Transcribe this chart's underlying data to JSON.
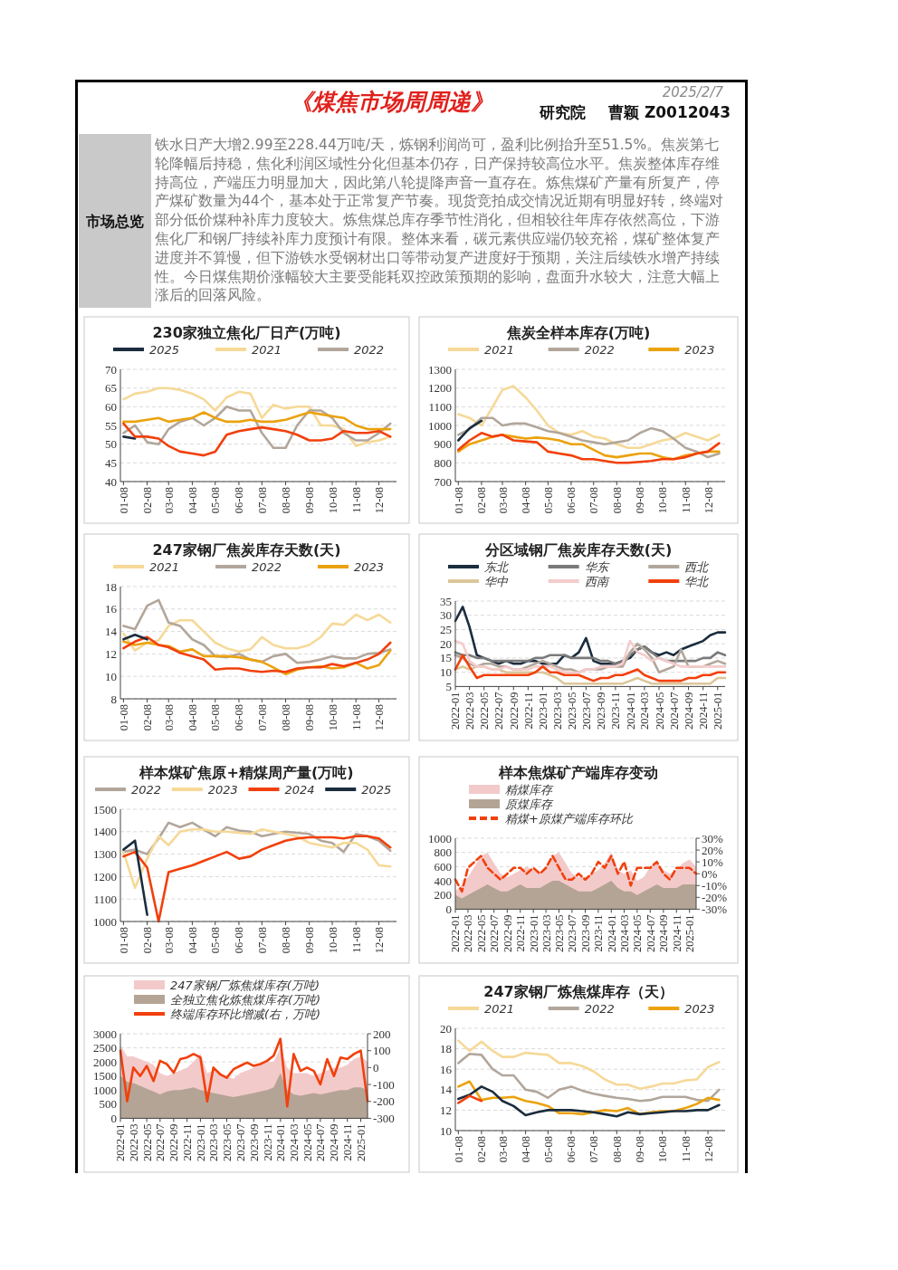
{
  "chart_data": [
    {
      "type": "other",
      "title": "《煤焦市场周周递》",
      "annotations": [
        "2025/2/7",
        "研究院",
        "曹颖  Z0012043",
        "市场总览",
        "铁水日产大增2.99至228.44万吨/天，炼钢利润尚可，盈利比例抬升至51.5%。焦炭第七轮降幅后持稳，焦化利润区域性分化但基本仍存，日产保持较高位水平。焦炭整体库存维持高位，产端压力明显加大，因此第八轮提降声音一直存在。炼焦煤矿产量有所复产，停产煤矿数量为44个，基本处于正常复产节奏。现货竞拍成交情况近期有明显好转，终端对部分低价煤种补库力度较大。炼焦煤总库存季节性消化，但相较往年库存依然高位，下游焦化厂和钢厂持续补库力度预计有限。整体来看，碳元素供应端仍较充裕，煤矿整体复产进度并不算慢，但下游铁水受钢材出口等带动复产进度好于预期，关注后续铁水增产持续性。今日煤焦期价涨幅较大主要受能耗双控政策预期的影响，盘面升水较大，注意大幅上涨后的回落风险。"
      ]
    },
    {
      "type": "line",
      "title": "230家独立焦化厂日产(万吨)",
      "grid": "y",
      "legend": "top",
      "x": [
        "--01-08",
        "--01-23",
        "--02-08",
        "--02-23",
        "--03-08",
        "--03-23",
        "--04-08",
        "--04-23",
        "--05-08",
        "--05-23",
        "--06-08",
        "--06-23",
        "--07-08",
        "--07-23",
        "--08-08",
        "--08-23",
        "--09-08",
        "--09-23",
        "--10-08",
        "--10-23",
        "--11-08",
        "--11-23",
        "--12-08",
        "--12-23"
      ],
      "xlim": [
        "--01-04",
        "--12-31"
      ],
      "xticks": [
        {
          "value": "--01-08",
          "label": "01-08"
        },
        {
          "value": "--02-08",
          "label": "02-08"
        },
        {
          "value": "--03-08",
          "label": "03-08"
        },
        {
          "value": "--04-08",
          "label": "04-08"
        },
        {
          "value": "--05-08",
          "label": "05-08"
        },
        {
          "value": "--06-08",
          "label": "06-08"
        },
        {
          "value": "--07-08",
          "label": "07-08"
        },
        {
          "value": "--08-08",
          "label": "08-08"
        },
        {
          "value": "--09-08",
          "label": "09-08"
        },
        {
          "value": "--10-08",
          "label": "10-08"
        },
        {
          "value": "--11-08",
          "label": "11-08"
        },
        {
          "value": "--12-08",
          "label": "12-08"
        }
      ],
      "ylim": [
        40,
        70
      ],
      "yticks": [
        40,
        45,
        50,
        55,
        60,
        65,
        70
      ],
      "series": [
        {
          "name": "2025",
          "color": "#1b2d3e",
          "x": [
            "--01-08",
            "--01-23"
          ],
          "values": [
            52,
            51.5
          ]
        },
        {
          "name": "2021",
          "color": "#f6d998",
          "values": [
            62,
            63.5,
            64,
            65,
            65,
            64.5,
            63.5,
            62,
            59,
            62.5,
            64,
            63.5,
            57,
            60.5,
            59.5,
            60,
            60,
            55,
            55,
            54,
            49.5,
            50.5,
            51,
            52
          ]
        },
        {
          "name": "2022",
          "color": "#b2a69b",
          "values": [
            53,
            55,
            50.5,
            50,
            54,
            56,
            57,
            55,
            57,
            60,
            59,
            59,
            53,
            49,
            49,
            55,
            59,
            59,
            57,
            53,
            51,
            51,
            53,
            55.5
          ]
        },
        {
          "color": "#eba20e",
          "values": [
            56,
            56,
            56.5,
            57,
            56,
            56.5,
            57,
            58.5,
            57,
            56,
            56,
            56.5,
            56,
            56,
            56.5,
            57.5,
            58.5,
            58,
            57.5,
            57,
            55,
            54,
            54,
            54
          ]
        },
        {
          "color": "#f2400c",
          "values": [
            55.5,
            52,
            52,
            51.5,
            49.5,
            48,
            47.5,
            47,
            48,
            52.5,
            53.5,
            54,
            54.5,
            54,
            53.5,
            52.5,
            51,
            51,
            51.5,
            53.5,
            53,
            53,
            53.5,
            52
          ]
        }
      ]
    },
    {
      "type": "line",
      "title": "焦炭全样本库存(万吨)",
      "grid": "y",
      "legend": "top",
      "x": [
        "--01-08",
        "--01-23",
        "--02-08",
        "--02-23",
        "--03-08",
        "--03-23",
        "--04-08",
        "--04-23",
        "--05-08",
        "--05-23",
        "--06-08",
        "--06-23",
        "--07-08",
        "--07-23",
        "--08-08",
        "--08-23",
        "--09-08",
        "--09-23",
        "--10-08",
        "--10-23",
        "--11-08",
        "--11-23",
        "--12-08",
        "--12-23"
      ],
      "xlim": [
        "--01-04",
        "--12-31"
      ],
      "xticks": [
        {
          "value": "--01-08",
          "label": "01-08"
        },
        {
          "value": "--02-08",
          "label": "02-08"
        },
        {
          "value": "--03-08",
          "label": "03-08"
        },
        {
          "value": "--04-08",
          "label": "04-08"
        },
        {
          "value": "--05-08",
          "label": "05-08"
        },
        {
          "value": "--06-08",
          "label": "06-08"
        },
        {
          "value": "--07-08",
          "label": "07-08"
        },
        {
          "value": "--08-08",
          "label": "08-08"
        },
        {
          "value": "--09-08",
          "label": "09-08"
        },
        {
          "value": "--10-08",
          "label": "10-08"
        },
        {
          "value": "--11-08",
          "label": "11-08"
        },
        {
          "value": "--12-08",
          "label": "12-08"
        }
      ],
      "ylim": [
        700,
        1300
      ],
      "yticks": [
        700,
        800,
        900,
        1000,
        1100,
        1200,
        1300
      ],
      "series": [
        {
          "name": "2021",
          "color": "#f6d998",
          "values": [
            1060,
            1040,
            1000,
            1100,
            1190,
            1210,
            1150,
            1080,
            1000,
            960,
            950,
            970,
            940,
            930,
            900,
            880,
            880,
            900,
            920,
            930,
            960,
            940,
            920,
            950
          ]
        },
        {
          "name": "2022",
          "color": "#b2a69b",
          "values": [
            950,
            980,
            1040,
            1040,
            1000,
            1010,
            1010,
            990,
            970,
            960,
            940,
            920,
            910,
            900,
            910,
            920,
            960,
            985,
            970,
            930,
            880,
            860,
            830,
            850
          ]
        },
        {
          "name": "2023",
          "color": "#eba20e",
          "values": [
            860,
            900,
            920,
            940,
            950,
            940,
            930,
            935,
            930,
            920,
            900,
            900,
            870,
            840,
            830,
            840,
            850,
            850,
            830,
            820,
            840,
            850,
            860,
            860
          ]
        },
        {
          "color": "#f2400c",
          "values": [
            870,
            920,
            960,
            940,
            950,
            920,
            915,
            910,
            860,
            850,
            840,
            820,
            820,
            810,
            800,
            800,
            805,
            810,
            820,
            820,
            830,
            850,
            860,
            905
          ]
        },
        {
          "color": "#1b2d3e",
          "x": [
            "--01-08",
            "--01-23",
            "--02-08"
          ],
          "values": [
            920,
            985,
            1025
          ]
        }
      ]
    },
    {
      "type": "line",
      "title": "247家钢厂焦炭库存天数(天)",
      "grid": "y",
      "legend": "top",
      "x": [
        "--01-08",
        "--01-23",
        "--02-08",
        "--02-23",
        "--03-08",
        "--03-23",
        "--04-08",
        "--04-23",
        "--05-08",
        "--05-23",
        "--06-08",
        "--06-23",
        "--07-08",
        "--07-23",
        "--08-08",
        "--08-23",
        "--09-08",
        "--09-23",
        "--10-08",
        "--10-23",
        "--11-08",
        "--11-23",
        "--12-08",
        "--12-23"
      ],
      "xlim": [
        "--01-04",
        "--12-31"
      ],
      "xticks": [
        {
          "value": "--01-08",
          "label": "01-08"
        },
        {
          "value": "--02-08",
          "label": "02-08"
        },
        {
          "value": "--03-08",
          "label": "03-08"
        },
        {
          "value": "--04-08",
          "label": "04-08"
        },
        {
          "value": "--05-08",
          "label": "05-08"
        },
        {
          "value": "--06-08",
          "label": "06-08"
        },
        {
          "value": "--07-08",
          "label": "07-08"
        },
        {
          "value": "--08-08",
          "label": "08-08"
        },
        {
          "value": "--09-08",
          "label": "09-08"
        },
        {
          "value": "--10-08",
          "label": "10-08"
        },
        {
          "value": "--11-08",
          "label": "11-08"
        },
        {
          "value": "--12-08",
          "label": "12-08"
        }
      ],
      "ylim": [
        8,
        18
      ],
      "yticks": [
        8,
        10,
        12,
        14,
        16,
        18
      ],
      "series": [
        {
          "name": "2021",
          "color": "#f6d998",
          "values": [
            13.8,
            12.3,
            13,
            13.2,
            14.5,
            15,
            15,
            14,
            13,
            12.5,
            12.2,
            12.4,
            13.5,
            12.8,
            12.5,
            12.5,
            12.8,
            13.5,
            14.7,
            14.6,
            15.5,
            15,
            15.5,
            14.8
          ]
        },
        {
          "name": "2022",
          "color": "#b2a69b",
          "values": [
            14.5,
            14.2,
            16.3,
            16.8,
            14.8,
            14.5,
            13.3,
            12.8,
            11.8,
            11.7,
            12,
            11.5,
            11.3,
            11.8,
            12,
            11.2,
            11.3,
            11.5,
            11.8,
            11.6,
            11.6,
            12,
            12.1,
            12.4
          ]
        },
        {
          "name": "2023",
          "color": "#eba20e",
          "values": [
            13.1,
            12.8,
            13,
            12.8,
            12.7,
            12.2,
            12.4,
            11.8,
            11.8,
            11.8,
            11.7,
            11.5,
            11.3,
            10.8,
            10.2,
            10.6,
            10.8,
            10.9,
            10.7,
            10.8,
            11.2,
            10.7,
            11,
            12.3
          ]
        },
        {
          "color": "#f2400c",
          "values": [
            12.5,
            13.1,
            13.5,
            12.8,
            12.6,
            12.1,
            11.8,
            11.5,
            10.6,
            10.7,
            10.7,
            10.5,
            10.4,
            10.5,
            10.4,
            10.7,
            10.8,
            10.8,
            11.1,
            10.9,
            11.2,
            11.5,
            12,
            13
          ]
        },
        {
          "color": "#1b2d3e",
          "x": [
            "--01-08",
            "--01-23",
            "--02-08"
          ],
          "values": [
            13.3,
            13.7,
            13.3
          ]
        }
      ]
    },
    {
      "type": "line",
      "title": "分区域钢厂焦炭库存天数(天)",
      "grid": "y",
      "legend": "top",
      "x": [
        "2022-01",
        "2022-02",
        "2022-03",
        "2022-04",
        "2022-05",
        "2022-06",
        "2022-07",
        "2022-08",
        "2022-09",
        "2022-10",
        "2022-11",
        "2022-12",
        "2023-01",
        "2023-02",
        "2023-03",
        "2023-04",
        "2023-05",
        "2023-06",
        "2023-07",
        "2023-08",
        "2023-09",
        "2023-10",
        "2023-11",
        "2023-12",
        "2024-01",
        "2024-02",
        "2024-03",
        "2024-04",
        "2024-05",
        "2024-06",
        "2024-07",
        "2024-08",
        "2024-09",
        "2024-10",
        "2024-11",
        "2024-12",
        "2025-01",
        "2025-02"
      ],
      "xlim": [
        "2022-01",
        "2025-02"
      ],
      "xticks": [
        {
          "value": "2022-01",
          "label": "2022-01"
        },
        {
          "value": "2022-03",
          "label": "2022-03"
        },
        {
          "value": "2022-05",
          "label": "2022-05"
        },
        {
          "value": "2022-07",
          "label": "2022-07"
        },
        {
          "value": "2022-09",
          "label": "2022-09"
        },
        {
          "value": "2022-11",
          "label": "2022-11"
        },
        {
          "value": "2023-01",
          "label": "2023-01"
        },
        {
          "value": "2023-03",
          "label": "2023-03"
        },
        {
          "value": "2023-05",
          "label": "2023-05"
        },
        {
          "value": "2023-07",
          "label": "2023-07"
        },
        {
          "value": "2023-09",
          "label": "2023-09"
        },
        {
          "value": "2023-11",
          "label": "2023-11"
        },
        {
          "value": "2024-01",
          "label": "2024-01"
        },
        {
          "value": "2024-03",
          "label": "2024-03"
        },
        {
          "value": "2024-05",
          "label": "2024-05"
        },
        {
          "value": "2024-07",
          "label": "2024-07"
        },
        {
          "value": "2024-09",
          "label": "2024-09"
        },
        {
          "value": "2024-11",
          "label": "2024-11"
        },
        {
          "value": "2025-01",
          "label": "2025-01"
        }
      ],
      "ylim": [
        5,
        35
      ],
      "yticks": [
        5,
        10,
        15,
        20,
        25,
        30,
        35
      ],
      "series": [
        {
          "name": "东北",
          "color": "#1b2d3e",
          "values": [
            28,
            33,
            26,
            16,
            15,
            14,
            13,
            14,
            13,
            13,
            14,
            14,
            13,
            13,
            13,
            16,
            15,
            17,
            22,
            14,
            13,
            13,
            13,
            14,
            15,
            18,
            19,
            17,
            16,
            17,
            16,
            18,
            19,
            20,
            21,
            23,
            24,
            24
          ]
        },
        {
          "name": "华东",
          "color": "#7a7a7a",
          "values": [
            17,
            16,
            16,
            15,
            15,
            14,
            14,
            14,
            14,
            14,
            14,
            15,
            15,
            16,
            16,
            16,
            15,
            15,
            15,
            15,
            14,
            14,
            13,
            14,
            16,
            18,
            19,
            17,
            15,
            14,
            14,
            14,
            14,
            14,
            15,
            15,
            17,
            16
          ]
        },
        {
          "name": "西北",
          "color": "#b2a69b",
          "values": [
            16,
            15,
            13,
            12,
            13,
            13,
            12,
            12,
            11,
            11,
            12,
            13,
            14,
            13,
            12,
            11,
            11,
            10,
            11,
            11,
            11,
            12,
            12,
            12,
            17,
            20,
            18,
            15,
            10,
            11,
            12,
            18,
            12,
            12,
            12,
            13,
            14,
            13
          ]
        },
        {
          "name": "华中",
          "color": "#dcc699",
          "values": [
            11,
            12,
            11,
            12,
            12,
            11,
            11,
            10,
            10,
            10,
            10,
            10,
            10,
            9,
            8,
            6,
            6,
            6,
            6,
            6,
            6,
            6,
            6,
            6,
            7,
            8,
            7,
            6,
            6,
            6,
            6,
            6,
            6,
            6,
            6,
            6,
            8,
            8
          ]
        },
        {
          "name": "西南",
          "color": "#f4cccc",
          "values": [
            21,
            20,
            14,
            12,
            12,
            11,
            11,
            12,
            11,
            11,
            11,
            12,
            12,
            12,
            11,
            10,
            10,
            10,
            11,
            11,
            12,
            12,
            12,
            13,
            21,
            17,
            16,
            14,
            15,
            14,
            13,
            12,
            12,
            12,
            12,
            12,
            12,
            12
          ]
        },
        {
          "name": "华北",
          "color": "#f2400c",
          "values": [
            11,
            16,
            12,
            8,
            9,
            9,
            9,
            9,
            9,
            9,
            9,
            10,
            12,
            10,
            10,
            9,
            9,
            9,
            8,
            7,
            8,
            8,
            9,
            9,
            10,
            11,
            9,
            8,
            7,
            7,
            7,
            7,
            8,
            8,
            9,
            9,
            10,
            10
          ]
        }
      ]
    },
    {
      "type": "line",
      "title": "样本煤矿焦原+精煤周产量(万吨)",
      "grid": "y",
      "legend": "top",
      "x": [
        "--01-08",
        "--01-23",
        "--02-08",
        "--02-23",
        "--03-08",
        "--03-23",
        "--04-08",
        "--04-23",
        "--05-08",
        "--05-23",
        "--06-08",
        "--06-23",
        "--07-08",
        "--07-23",
        "--08-08",
        "--08-23",
        "--09-08",
        "--09-23",
        "--10-08",
        "--10-23",
        "--11-08",
        "--11-23",
        "--12-08",
        "--12-23"
      ],
      "xlim": [
        "--01-04",
        "--12-31"
      ],
      "xticks": [
        {
          "value": "--01-08",
          "label": "01-08"
        },
        {
          "value": "--02-08",
          "label": "02-08"
        },
        {
          "value": "--03-08",
          "label": "03-08"
        },
        {
          "value": "--04-08",
          "label": "04-08"
        },
        {
          "value": "--05-08",
          "label": "05-08"
        },
        {
          "value": "--06-08",
          "label": "06-08"
        },
        {
          "value": "--07-08",
          "label": "07-08"
        },
        {
          "value": "--08-08",
          "label": "08-08"
        },
        {
          "value": "--09-08",
          "label": "09-08"
        },
        {
          "value": "--10-08",
          "label": "10-08"
        },
        {
          "value": "--11-08",
          "label": "11-08"
        },
        {
          "value": "--12-08",
          "label": "12-08"
        }
      ],
      "ylim": [
        1000,
        1500
      ],
      "yticks": [
        1000,
        1100,
        1200,
        1300,
        1400,
        1500
      ],
      "series": [
        {
          "name": "2022",
          "color": "#b2a69b",
          "values": [
            1310,
            1320,
            1300,
            1370,
            1440,
            1420,
            1440,
            1410,
            1380,
            1420,
            1405,
            1400,
            1380,
            1390,
            1400,
            1395,
            1390,
            1360,
            1350,
            1310,
            1390,
            1380,
            1360,
            1315
          ]
        },
        {
          "name": "2023",
          "color": "#f6d998",
          "values": [
            1310,
            1150,
            1280,
            1380,
            1340,
            1400,
            1410,
            1410,
            1400,
            1400,
            1395,
            1390,
            1410,
            1400,
            1390,
            1380,
            1350,
            1340,
            1330,
            1350,
            1350,
            1320,
            1250,
            1245
          ]
        },
        {
          "name": "2024",
          "color": "#f2400c",
          "values": [
            1290,
            1310,
            1240,
            1000,
            1220,
            1235,
            1250,
            1270,
            1290,
            1310,
            1280,
            1290,
            1320,
            1340,
            1360,
            1370,
            1375,
            1375,
            1375,
            1370,
            1380,
            1380,
            1370,
            1330
          ]
        },
        {
          "name": "2025",
          "color": "#1b2d3e",
          "x": [
            "--01-08",
            "--01-23",
            "--02-08"
          ],
          "values": [
            1320,
            1360,
            1030
          ]
        }
      ]
    },
    {
      "type": "area",
      "title": "样本焦煤矿产端库存变动",
      "grid": "y",
      "legend": "top left",
      "x": [
        "2022-01",
        "2022-02",
        "2022-03",
        "2022-04",
        "2022-05",
        "2022-06",
        "2022-07",
        "2022-08",
        "2022-09",
        "2022-10",
        "2022-11",
        "2022-12",
        "2023-01",
        "2023-02",
        "2023-03",
        "2023-04",
        "2023-05",
        "2023-06",
        "2023-07",
        "2023-08",
        "2023-09",
        "2023-10",
        "2023-11",
        "2023-12",
        "2024-01",
        "2024-02",
        "2024-03",
        "2024-04",
        "2024-05",
        "2024-06",
        "2024-07",
        "2024-08",
        "2024-09",
        "2024-10",
        "2024-11",
        "2024-12",
        "2025-01",
        "2025-02"
      ],
      "xlim": [
        "2022-01",
        "2025-02"
      ],
      "xticks": [
        {
          "value": "2022-01",
          "label": "2022-01"
        },
        {
          "value": "2022-03",
          "label": "2022-03"
        },
        {
          "value": "2022-05",
          "label": "2022-05"
        },
        {
          "value": "2022-07",
          "label": "2022-07"
        },
        {
          "value": "2022-09",
          "label": "2022-09"
        },
        {
          "value": "2022-11",
          "label": "2022-11"
        },
        {
          "value": "2023-01",
          "label": "2023-01"
        },
        {
          "value": "2023-03",
          "label": "2023-03"
        },
        {
          "value": "2023-05",
          "label": "2023-05"
        },
        {
          "value": "2023-07",
          "label": "2023-07"
        },
        {
          "value": "2023-09",
          "label": "2023-09"
        },
        {
          "value": "2023-11",
          "label": "2023-11"
        },
        {
          "value": "2024-01",
          "label": "2024-01"
        },
        {
          "value": "2024-03",
          "label": "2024-03"
        },
        {
          "value": "2024-05",
          "label": "2024-05"
        },
        {
          "value": "2024-07",
          "label": "2024-07"
        },
        {
          "value": "2024-09",
          "label": "2024-09"
        },
        {
          "value": "2024-11",
          "label": "2024-11"
        },
        {
          "value": "2025-01",
          "label": "2025-01"
        }
      ],
      "ylim": [
        0,
        1000
      ],
      "yticks": [
        0,
        200,
        400,
        600,
        800,
        1000
      ],
      "y2lim": [
        -30,
        30
      ],
      "y2ticks": [
        {
          "value": -30,
          "label": "-30%"
        },
        {
          "value": -20,
          "label": "-20%"
        },
        {
          "value": -10,
          "label": "-10%"
        },
        {
          "value": 0,
          "label": "0%"
        },
        {
          "value": 10,
          "label": "10%"
        },
        {
          "value": 20,
          "label": "20%"
        },
        {
          "value": 30,
          "label": "30%"
        }
      ],
      "series": [
        {
          "name": "精煤库存",
          "color": "#f3caca",
          "values": [
            250,
            350,
            450,
            600,
            750,
            800,
            650,
            500,
            450,
            500,
            550,
            600,
            550,
            500,
            600,
            750,
            800,
            650,
            500,
            450,
            450,
            500,
            550,
            650,
            800,
            550,
            500,
            550,
            400,
            450,
            600,
            650,
            550,
            500,
            550,
            650,
            700,
            600
          ]
        },
        {
          "name": "原煤库存",
          "color": "#b4a495",
          "values": [
            200,
            150,
            200,
            250,
            300,
            350,
            300,
            250,
            250,
            300,
            350,
            300,
            300,
            300,
            350,
            400,
            400,
            350,
            300,
            250,
            250,
            250,
            300,
            350,
            400,
            300,
            250,
            250,
            200,
            250,
            300,
            350,
            300,
            300,
            300,
            350,
            350,
            350
          ]
        },
        {
          "name": "精煤+原煤产端库存环比",
          "color": "#f2400c",
          "type": "line",
          "axis": "y2",
          "line_style": "dashed",
          "values": [
            -5,
            -15,
            5,
            10,
            15,
            5,
            0,
            -5,
            0,
            5,
            5,
            0,
            5,
            0,
            5,
            15,
            5,
            -5,
            -5,
            0,
            -5,
            0,
            10,
            5,
            15,
            0,
            10,
            -10,
            5,
            5,
            5,
            10,
            0,
            -5,
            5,
            5,
            5,
            0
          ]
        }
      ]
    },
    {
      "type": "area",
      "grid": "y",
      "legend": "top left",
      "x": [
        "2022-01",
        "2022-02",
        "2022-03",
        "2022-04",
        "2022-05",
        "2022-06",
        "2022-07",
        "2022-08",
        "2022-09",
        "2022-10",
        "2022-11",
        "2022-12",
        "2023-01",
        "2023-02",
        "2023-03",
        "2023-04",
        "2023-05",
        "2023-06",
        "2023-07",
        "2023-08",
        "2023-09",
        "2023-10",
        "2023-11",
        "2023-12",
        "2024-01",
        "2024-02",
        "2024-03",
        "2024-04",
        "2024-05",
        "2024-06",
        "2024-07",
        "2024-08",
        "2024-09",
        "2024-10",
        "2024-11",
        "2024-12",
        "2025-01",
        "2025-02"
      ],
      "xlim": [
        "2022-01",
        "2025-02"
      ],
      "xticks": [
        {
          "value": "2022-01",
          "label": "2022-01"
        },
        {
          "value": "2022-03",
          "label": "2022-03"
        },
        {
          "value": "2022-05",
          "label": "2022-05"
        },
        {
          "value": "2022-07",
          "label": "2022-07"
        },
        {
          "value": "2022-09",
          "label": "2022-09"
        },
        {
          "value": "2022-11",
          "label": "2022-11"
        },
        {
          "value": "2023-01",
          "label": "2023-01"
        },
        {
          "value": "2023-03",
          "label": "2023-03"
        },
        {
          "value": "2023-05",
          "label": "2023-05"
        },
        {
          "value": "2023-07",
          "label": "2023-07"
        },
        {
          "value": "2023-09",
          "label": "2023-09"
        },
        {
          "value": "2023-11",
          "label": "2023-11"
        },
        {
          "value": "2024-01",
          "label": "2024-01"
        },
        {
          "value": "2024-03",
          "label": "2024-03"
        },
        {
          "value": "2024-05",
          "label": "2024-05"
        },
        {
          "value": "2024-07",
          "label": "2024-07"
        },
        {
          "value": "2024-09",
          "label": "2024-09"
        },
        {
          "value": "2024-11",
          "label": "2024-11"
        },
        {
          "value": "2025-01",
          "label": "2025-01"
        }
      ],
      "ylim": [
        0,
        3000
      ],
      "yticks": [
        0,
        500,
        1000,
        1500,
        2000,
        2500,
        3000
      ],
      "y2lim": [
        -300,
        200
      ],
      "y2ticks": [
        -300,
        -200,
        -100,
        0,
        100,
        200
      ],
      "series": [
        {
          "name": "247家钢厂炼焦煤库存(万吨)",
          "color": "#f3caca",
          "values": [
            2600,
            2200,
            2200,
            2100,
            2000,
            1900,
            1600,
            1500,
            1600,
            1700,
            1800,
            2000,
            2300,
            1600,
            1700,
            1600,
            1500,
            1400,
            1600,
            1700,
            1800,
            1900,
            2000,
            2000,
            2500,
            1800,
            1600,
            1600,
            1600,
            1500,
            1600,
            1700,
            1800,
            1800,
            1900,
            2100,
            2200,
            2000
          ]
        },
        {
          "name": "全独立焦化炼焦煤库存(万吨)",
          "color": "#b4a495",
          "values": [
            1500,
            1300,
            1250,
            1150,
            1050,
            950,
            850,
            950,
            1000,
            1000,
            1050,
            1100,
            1000,
            950,
            900,
            850,
            800,
            750,
            800,
            850,
            900,
            950,
            1000,
            1100,
            1600,
            1000,
            850,
            800,
            850,
            900,
            850,
            900,
            950,
            1000,
            1000,
            1100,
            1100,
            1000
          ]
        },
        {
          "name": "终端库存环比增减(右，万吨)",
          "color": "#f2400c",
          "type": "line",
          "axis": "y2",
          "values": [
            100,
            -200,
            0,
            -50,
            10,
            -80,
            40,
            20,
            -30,
            50,
            60,
            80,
            60,
            -200,
            0,
            -40,
            -60,
            -10,
            10,
            30,
            10,
            20,
            40,
            70,
            170,
            -230,
            80,
            -20,
            0,
            -20,
            -100,
            50,
            -50,
            60,
            50,
            80,
            100,
            -200
          ]
        }
      ]
    },
    {
      "type": "line",
      "title": "247家钢厂炼焦煤库存（天）",
      "grid": "y",
      "legend": "top",
      "x": [
        "--01-08",
        "--01-23",
        "--02-08",
        "--02-23",
        "--03-08",
        "--03-23",
        "--04-08",
        "--04-23",
        "--05-08",
        "--05-23",
        "--06-08",
        "--06-23",
        "--07-08",
        "--07-23",
        "--08-08",
        "--08-23",
        "--09-08",
        "--09-23",
        "--10-08",
        "--10-23",
        "--11-08",
        "--11-23",
        "--12-08",
        "--12-23"
      ],
      "xlim": [
        "--01-04",
        "--12-31"
      ],
      "xticks": [
        {
          "value": "--01-08",
          "label": "01-08"
        },
        {
          "value": "--02-08",
          "label": "02-08"
        },
        {
          "value": "--03-08",
          "label": "03-08"
        },
        {
          "value": "--04-08",
          "label": "04-08"
        },
        {
          "value": "--05-08",
          "label": "05-08"
        },
        {
          "value": "--06-08",
          "label": "06-08"
        },
        {
          "value": "--07-08",
          "label": "07-08"
        },
        {
          "value": "--08-08",
          "label": "08-08"
        },
        {
          "value": "--09-08",
          "label": "09-08"
        },
        {
          "value": "--10-08",
          "label": "10-08"
        },
        {
          "value": "--11-08",
          "label": "11-08"
        },
        {
          "value": "--12-08",
          "label": "12-08"
        }
      ],
      "ylim": [
        10,
        20
      ],
      "yticks": [
        10,
        12,
        14,
        16,
        18,
        20
      ],
      "series": [
        {
          "name": "2021",
          "color": "#f6d998",
          "values": [
            18.8,
            17.8,
            18.7,
            17.8,
            17.2,
            17.2,
            17.6,
            17.5,
            17.4,
            16.6,
            16.6,
            16.3,
            15.8,
            15,
            14.5,
            14.5,
            14.1,
            14.3,
            14.6,
            14.6,
            14.9,
            15,
            16.2,
            16.7
          ]
        },
        {
          "name": "2022",
          "color": "#b2a69b",
          "values": [
            16.6,
            17.5,
            17.4,
            16,
            15.4,
            15.4,
            14,
            13.8,
            13.2,
            14,
            14.3,
            13.9,
            13.6,
            13.4,
            13.2,
            13.1,
            12.9,
            13,
            13.3,
            13.3,
            13.3,
            13,
            12.9,
            14
          ]
        },
        {
          "name": "2023",
          "color": "#eba20e",
          "values": [
            14.3,
            14.8,
            13,
            13.2,
            13.2,
            13.3,
            12.9,
            12.7,
            12.4,
            11.7,
            11.7,
            11.6,
            11.8,
            12,
            11.9,
            12.2,
            11.6,
            11.8,
            11.9,
            11.9,
            12.2,
            12.6,
            13.2,
            13
          ]
        },
        {
          "color": "#1b2d3e",
          "values": [
            13.1,
            13.5,
            14.3,
            13.8,
            12.9,
            12.4,
            11.5,
            11.8,
            12,
            12,
            12,
            11.9,
            11.8,
            11.6,
            11.4,
            11.8,
            11.6,
            11.7,
            11.8,
            11.9,
            11.9,
            12,
            12,
            12.5
          ]
        },
        {
          "color": "#f2400c",
          "x": [
            "--01-08",
            "--01-23",
            "--02-08"
          ],
          "values": [
            12.7,
            13.4,
            12.9
          ]
        }
      ]
    }
  ]
}
